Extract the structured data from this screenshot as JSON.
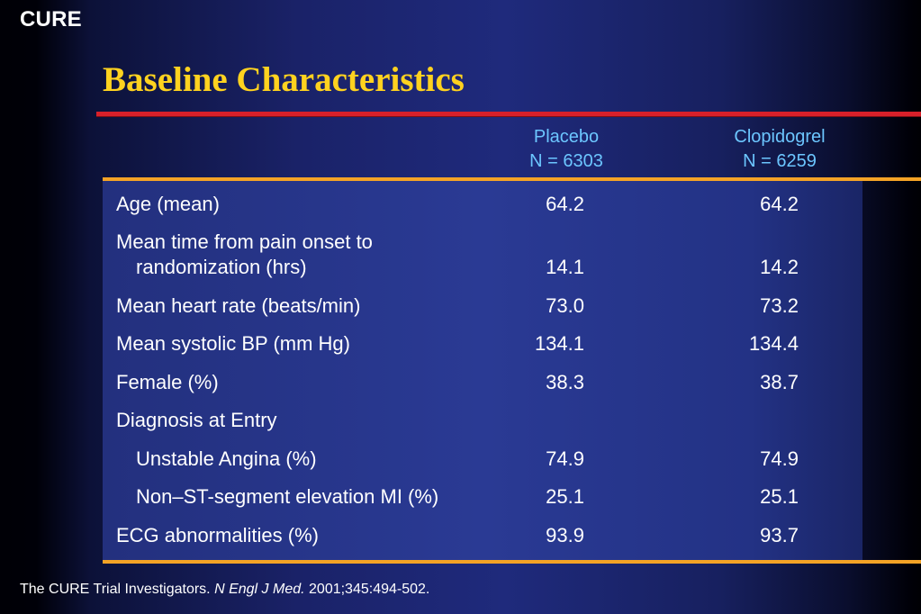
{
  "brand": "CURE",
  "title": "Baseline Characteristics",
  "columns": {
    "placebo": {
      "name": "Placebo",
      "n": "N = 6303"
    },
    "clopidogrel": {
      "name": "Clopidogrel",
      "n": "N = 6259"
    }
  },
  "rows": [
    {
      "label": "Age (mean)",
      "placebo": "64.2",
      "clopidogrel": "64.2"
    },
    {
      "label": "Mean time from pain onset to",
      "label2": "randomization (hrs)",
      "placebo": "14.1",
      "clopidogrel": "14.2"
    },
    {
      "label": "Mean heart rate (beats/min)",
      "placebo": "73.0",
      "clopidogrel": "73.2"
    },
    {
      "label": "Mean systolic BP (mm Hg)",
      "placebo": "134.1",
      "clopidogrel": "134.4"
    },
    {
      "label": "Female (%)",
      "placebo": "38.3",
      "clopidogrel": "38.7"
    },
    {
      "label": "Diagnosis at Entry"
    },
    {
      "label": "Unstable Angina (%)",
      "placebo": "74.9",
      "clopidogrel": "74.9"
    },
    {
      "label": "Non–ST-segment elevation MI (%)",
      "placebo": "25.1",
      "clopidogrel": "25.1"
    },
    {
      "label": "ECG abnormalities (%)",
      "placebo": "93.9",
      "clopidogrel": "93.7"
    }
  ],
  "footer": {
    "authors": "The CURE Trial Investigators.",
    "journal": "N Engl J Med.",
    "citation": "2001;345:494-502."
  },
  "colors": {
    "title": "#ffd21f",
    "column_header": "#6cc6ff",
    "red_rule": "#d8202a",
    "orange_rule": "#f4a326",
    "table_background": "#2a3a94"
  }
}
